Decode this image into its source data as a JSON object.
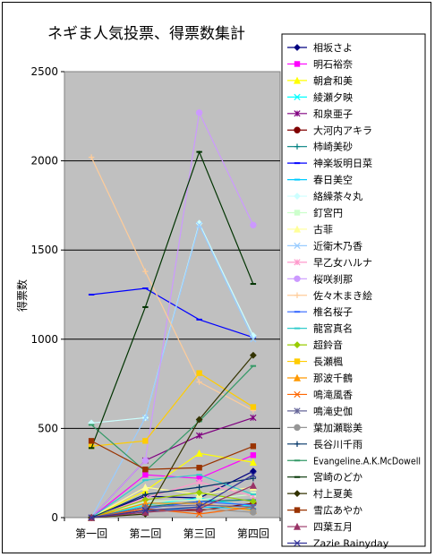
{
  "chart_data": {
    "type": "line",
    "title": "ネギま人気投票、得票数集計",
    "xlabel": "",
    "ylabel": "得票数",
    "categories": [
      "第一回",
      "第二回",
      "第三回",
      "第四回"
    ],
    "ylim": [
      0,
      2500
    ],
    "yticks": [
      0,
      500,
      1000,
      1500,
      2000,
      2500
    ],
    "grid": true,
    "legend_position": "right",
    "plot_background": "#c0c0c0",
    "series": [
      {
        "name": "相坂さよ",
        "color": "#000080",
        "marker": "diamond",
        "values": [
          0,
          120,
          110,
          260
        ]
      },
      {
        "name": "明石裕奈",
        "color": "#ff00ff",
        "marker": "square",
        "values": [
          0,
          240,
          220,
          350
        ]
      },
      {
        "name": "朝倉和美",
        "color": "#ffff00",
        "marker": "triangle",
        "values": [
          0,
          150,
          360,
          310
        ]
      },
      {
        "name": "綾瀬夕映",
        "color": "#00ffff",
        "marker": "x",
        "values": [
          0,
          70,
          110,
          60
        ]
      },
      {
        "name": "和泉亜子",
        "color": "#800080",
        "marker": "star",
        "values": [
          0,
          320,
          460,
          560
        ]
      },
      {
        "name": "大河内アキラ",
        "color": "#800000",
        "marker": "circle",
        "values": [
          0,
          40,
          40,
          80
        ]
      },
      {
        "name": "柿崎美砂",
        "color": "#008080",
        "marker": "plus",
        "values": [
          0,
          60,
          90,
          100
        ]
      },
      {
        "name": "神楽坂明日菜",
        "color": "#0000ff",
        "marker": "dash",
        "values": [
          1250,
          1285,
          1110,
          1010
        ]
      },
      {
        "name": "春日美空",
        "color": "#00ccff",
        "marker": "dash",
        "values": [
          0,
          30,
          60,
          50
        ]
      },
      {
        "name": "絡繰茶々丸",
        "color": "#ccffff",
        "marker": "diamond",
        "values": [
          530,
          560,
          1650,
          1020
        ]
      },
      {
        "name": "釘宮円",
        "color": "#ccffcc",
        "marker": "square",
        "values": [
          0,
          90,
          100,
          130
        ]
      },
      {
        "name": "古菲",
        "color": "#ffff99",
        "marker": "triangle",
        "values": [
          0,
          170,
          130,
          170
        ]
      },
      {
        "name": "近衛木乃香",
        "color": "#99ccff",
        "marker": "x",
        "values": [
          0,
          560,
          1640,
          1000
        ]
      },
      {
        "name": "早乙女ハルナ",
        "color": "#ff99cc",
        "marker": "star",
        "values": [
          0,
          110,
          200,
          120
        ]
      },
      {
        "name": "桜咲刹那",
        "color": "#cc99ff",
        "marker": "circle",
        "values": [
          0,
          320,
          2270,
          1640
        ]
      },
      {
        "name": "佐々木まき絵",
        "color": "#ffcc99",
        "marker": "plus",
        "values": [
          2020,
          1380,
          760,
          600
        ]
      },
      {
        "name": "椎名桜子",
        "color": "#3366ff",
        "marker": "dash",
        "values": [
          0,
          50,
          90,
          70
        ]
      },
      {
        "name": "龍宮真名",
        "color": "#33cccc",
        "marker": "dash",
        "values": [
          0,
          210,
          240,
          130
        ]
      },
      {
        "name": "超鈴音",
        "color": "#99cc00",
        "marker": "diamond",
        "values": [
          0,
          100,
          140,
          90
        ]
      },
      {
        "name": "長瀬楓",
        "color": "#ffcc00",
        "marker": "square",
        "values": [
          400,
          430,
          810,
          620
        ]
      },
      {
        "name": "那波千鶴",
        "color": "#ff9900",
        "marker": "triangle",
        "values": [
          0,
          80,
          80,
          40
        ]
      },
      {
        "name": "鳴滝風香",
        "color": "#ff6600",
        "marker": "x",
        "values": [
          0,
          50,
          20,
          60
        ]
      },
      {
        "name": "鳴滝史伽",
        "color": "#666699",
        "marker": "star",
        "values": [
          0,
          60,
          70,
          60
        ]
      },
      {
        "name": "葉加瀬聡美",
        "color": "#969696",
        "marker": "circle",
        "values": [
          0,
          30,
          50,
          30
        ]
      },
      {
        "name": "長谷川千雨",
        "color": "#003366",
        "marker": "plus",
        "values": [
          0,
          130,
          170,
          220
        ]
      },
      {
        "name": "Evangeline.A.K.McDowell",
        "color": "#339966",
        "marker": "dash",
        "values": [
          520,
          260,
          540,
          850
        ]
      },
      {
        "name": "宮崎のどか",
        "color": "#003300",
        "marker": "dash",
        "values": [
          390,
          1180,
          2050,
          1310
        ]
      },
      {
        "name": "村上夏美",
        "color": "#333300",
        "marker": "diamond",
        "values": [
          0,
          20,
          550,
          910
        ]
      },
      {
        "name": "雪広あやか",
        "color": "#993300",
        "marker": "square",
        "values": [
          430,
          270,
          280,
          400
        ]
      },
      {
        "name": "四葉五月",
        "color": "#993366",
        "marker": "triangle",
        "values": [
          0,
          30,
          50,
          180
        ]
      },
      {
        "name": "Zazie Rainyday",
        "color": "#333399",
        "marker": "x",
        "values": [
          0,
          40,
          60,
          240
        ]
      }
    ]
  }
}
